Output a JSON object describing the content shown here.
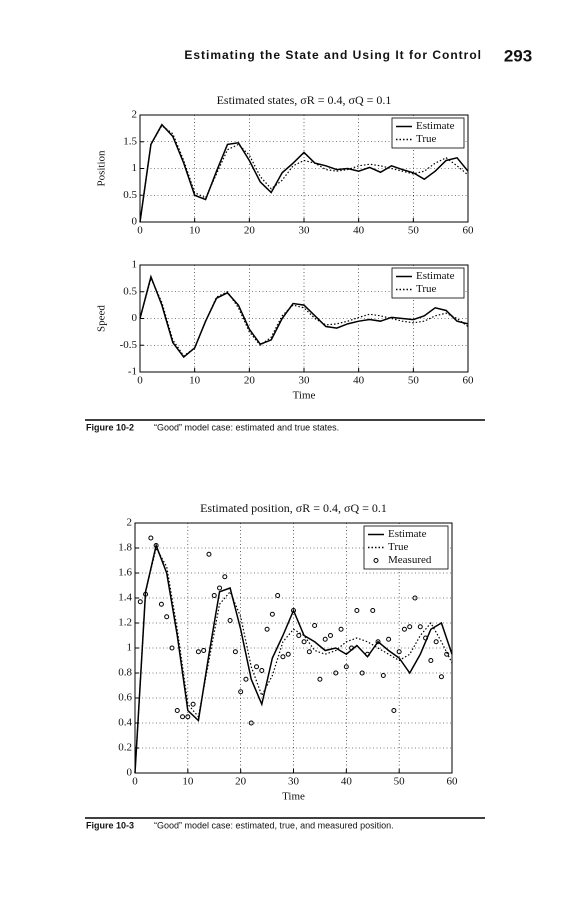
{
  "header": {
    "title": "Estimating the State and Using It for Control",
    "page": "293"
  },
  "captions": [
    {
      "label": "Figure 10-2",
      "text": "“Good” model case: estimated and true states."
    },
    {
      "label": "Figure 10-3",
      "text": "“Good” model case: estimated, true, and measured position."
    }
  ],
  "chart_data": [
    {
      "type": "line",
      "title": "Estimated states, σR = 0.4, σQ = 0.1",
      "ylabel": "Position",
      "x": [
        0,
        2,
        4,
        6,
        8,
        10,
        12,
        14,
        16,
        18,
        20,
        22,
        24,
        26,
        28,
        30,
        32,
        34,
        36,
        38,
        40,
        42,
        44,
        46,
        48,
        50,
        52,
        54,
        56,
        58,
        60
      ],
      "xlim": [
        0,
        60
      ],
      "xticks": [
        0,
        10,
        20,
        30,
        40,
        50,
        60
      ],
      "ylim": [
        0,
        2
      ],
      "yticks": [
        0,
        0.5,
        1,
        1.5,
        2
      ],
      "grid": true,
      "legend": "upper right",
      "series": [
        {
          "name": "Estimate",
          "color": "#000000",
          "style": "solid",
          "values": [
            0,
            1.45,
            1.82,
            1.6,
            1.1,
            0.5,
            0.42,
            0.95,
            1.45,
            1.48,
            1.15,
            0.75,
            0.55,
            0.92,
            1.1,
            1.3,
            1.1,
            1.05,
            0.98,
            1.0,
            0.95,
            1.02,
            0.93,
            1.05,
            0.98,
            0.92,
            0.8,
            0.95,
            1.15,
            1.2,
            0.95
          ]
        },
        {
          "name": "True",
          "color": "#000000",
          "style": "dotted",
          "values": [
            0,
            1.45,
            1.8,
            1.65,
            1.15,
            0.55,
            0.45,
            0.9,
            1.35,
            1.45,
            1.25,
            0.85,
            0.62,
            0.78,
            1.05,
            1.15,
            1.1,
            0.98,
            0.95,
            0.98,
            1.05,
            1.08,
            1.05,
            1.0,
            0.95,
            0.9,
            0.95,
            1.1,
            1.2,
            1.05,
            0.88
          ]
        }
      ]
    },
    {
      "type": "line",
      "ylabel": "Speed",
      "xlabel": "Time",
      "x": [
        0,
        2,
        4,
        6,
        8,
        10,
        12,
        14,
        16,
        18,
        20,
        22,
        24,
        26,
        28,
        30,
        32,
        34,
        36,
        38,
        40,
        42,
        44,
        46,
        48,
        50,
        52,
        54,
        56,
        58,
        60
      ],
      "xlim": [
        0,
        60
      ],
      "xticks": [
        0,
        10,
        20,
        30,
        40,
        50,
        60
      ],
      "ylim": [
        -1,
        1
      ],
      "yticks": [
        -1,
        -0.5,
        0,
        0.5,
        1
      ],
      "grid": true,
      "legend": "upper right",
      "series": [
        {
          "name": "Estimate",
          "color": "#000000",
          "style": "solid",
          "values": [
            0,
            0.78,
            0.25,
            -0.45,
            -0.72,
            -0.55,
            -0.05,
            0.38,
            0.48,
            0.25,
            -0.2,
            -0.48,
            -0.4,
            0.0,
            0.28,
            0.25,
            0.05,
            -0.15,
            -0.18,
            -0.1,
            -0.05,
            -0.02,
            -0.05,
            0.02,
            0.0,
            -0.02,
            0.05,
            0.2,
            0.15,
            -0.05,
            -0.1
          ]
        },
        {
          "name": "True",
          "color": "#000000",
          "style": "dotted",
          "values": [
            0,
            0.75,
            0.3,
            -0.4,
            -0.7,
            -0.55,
            -0.05,
            0.4,
            0.5,
            0.2,
            -0.25,
            -0.5,
            -0.35,
            0.05,
            0.25,
            0.2,
            0.0,
            -0.12,
            -0.1,
            -0.05,
            0.02,
            0.08,
            0.05,
            0.0,
            -0.05,
            -0.08,
            -0.05,
            0.05,
            0.1,
            0.0,
            -0.15
          ]
        }
      ]
    },
    {
      "type": "line",
      "title": "Estimated position, σR = 0.4, σQ = 0.1",
      "xlabel": "Time",
      "x": [
        0,
        2,
        4,
        6,
        8,
        10,
        12,
        14,
        16,
        18,
        20,
        22,
        24,
        26,
        28,
        30,
        32,
        34,
        36,
        38,
        40,
        42,
        44,
        46,
        48,
        50,
        52,
        54,
        56,
        58,
        60
      ],
      "xlim": [
        0,
        60
      ],
      "xticks": [
        0,
        10,
        20,
        30,
        40,
        50,
        60
      ],
      "ylim": [
        0,
        2
      ],
      "yticks": [
        0,
        0.2,
        0.4,
        0.6,
        0.8,
        1,
        1.2,
        1.4,
        1.6,
        1.8,
        2
      ],
      "grid": true,
      "legend": "upper right",
      "series": [
        {
          "name": "Estimate",
          "color": "#000000",
          "style": "solid",
          "values": [
            0,
            1.45,
            1.82,
            1.6,
            1.1,
            0.5,
            0.42,
            0.95,
            1.45,
            1.48,
            1.15,
            0.75,
            0.55,
            0.92,
            1.1,
            1.3,
            1.1,
            1.05,
            0.98,
            1.0,
            0.95,
            1.02,
            0.93,
            1.05,
            0.98,
            0.92,
            0.8,
            0.95,
            1.15,
            1.2,
            0.95
          ]
        },
        {
          "name": "True",
          "color": "#000000",
          "style": "dotted",
          "values": [
            0,
            1.45,
            1.8,
            1.65,
            1.15,
            0.55,
            0.45,
            0.9,
            1.35,
            1.45,
            1.25,
            0.85,
            0.62,
            0.78,
            1.05,
            1.15,
            1.1,
            0.98,
            0.95,
            0.98,
            1.05,
            1.08,
            1.05,
            1.0,
            0.95,
            0.9,
            0.95,
            1.1,
            1.2,
            1.05,
            0.88
          ]
        },
        {
          "name": "Measured",
          "color": "#000000",
          "style": "markers",
          "x": [
            1,
            2,
            3,
            4,
            5,
            6,
            7,
            8,
            9,
            10,
            11,
            12,
            13,
            14,
            15,
            16,
            17,
            18,
            19,
            20,
            21,
            22,
            23,
            24,
            25,
            26,
            27,
            28,
            29,
            30,
            31,
            32,
            33,
            34,
            35,
            36,
            37,
            38,
            39,
            40,
            41,
            42,
            43,
            44,
            45,
            46,
            47,
            48,
            49,
            50,
            51,
            52,
            53,
            54,
            55,
            56,
            57,
            58,
            59
          ],
          "values": [
            1.37,
            1.43,
            1.88,
            1.82,
            1.35,
            1.25,
            1.0,
            0.5,
            0.45,
            0.45,
            0.55,
            0.97,
            0.98,
            1.75,
            1.42,
            1.48,
            1.57,
            1.22,
            0.97,
            0.65,
            0.75,
            0.4,
            0.85,
            0.82,
            1.15,
            1.27,
            1.42,
            0.93,
            0.95,
            1.3,
            1.1,
            1.05,
            0.97,
            1.18,
            0.75,
            1.07,
            1.1,
            0.8,
            1.15,
            0.85,
            1.0,
            1.3,
            0.8,
            0.95,
            1.3,
            1.05,
            0.78,
            1.07,
            0.5,
            0.97,
            1.15,
            1.17,
            1.4,
            1.17,
            1.08,
            0.9,
            1.05,
            0.77,
            0.95
          ]
        }
      ]
    }
  ]
}
